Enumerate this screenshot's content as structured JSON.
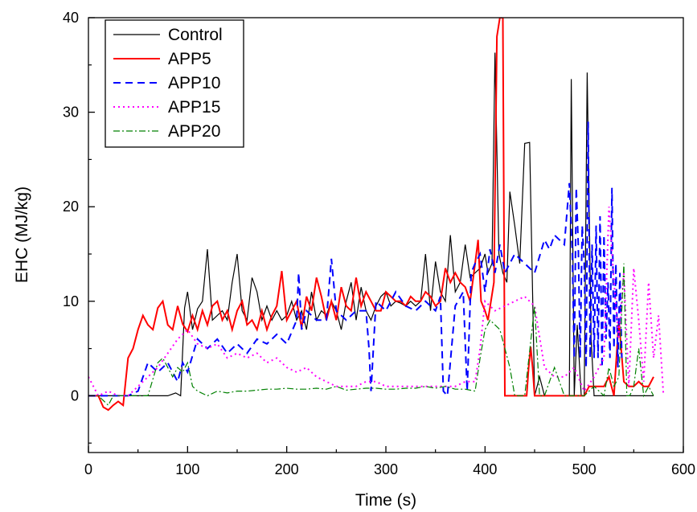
{
  "chart_data": {
    "type": "line",
    "xlabel": "Time (s)",
    "ylabel": "EHC (MJ/kg)",
    "xlim": [
      0,
      600
    ],
    "ylim": [
      -6,
      40
    ],
    "xticks": [
      0,
      100,
      200,
      300,
      400,
      500,
      600
    ],
    "yticks": [
      0,
      10,
      20,
      30,
      40
    ],
    "xtick_labels": [
      "0",
      "100",
      "200",
      "300",
      "400",
      "500",
      "600"
    ],
    "ytick_labels": [
      "0",
      "10",
      "20",
      "30",
      "40"
    ],
    "grid": false,
    "legend_position": "top-left",
    "series": [
      {
        "name": "Control",
        "color": "#000000",
        "dash": "solid",
        "width": 1.2,
        "x": [
          0,
          10,
          20,
          30,
          40,
          50,
          60,
          70,
          80,
          88,
          93,
          97,
          100,
          105,
          110,
          115,
          120,
          125,
          130,
          135,
          140,
          145,
          150,
          155,
          160,
          165,
          170,
          175,
          180,
          185,
          190,
          195,
          200,
          205,
          210,
          215,
          220,
          225,
          230,
          235,
          240,
          245,
          250,
          255,
          260,
          265,
          270,
          275,
          280,
          285,
          290,
          295,
          300,
          305,
          310,
          315,
          320,
          325,
          330,
          335,
          340,
          345,
          350,
          355,
          360,
          365,
          370,
          375,
          380,
          385,
          390,
          395,
          400,
          403,
          407,
          410,
          414,
          418,
          422,
          425,
          430,
          435,
          440,
          445,
          450,
          455,
          460,
          465,
          470,
          475,
          480,
          485,
          487,
          490,
          493,
          497,
          500,
          503,
          507,
          510,
          514,
          518,
          522,
          526,
          530,
          535,
          540,
          545,
          550,
          560,
          570
        ],
        "y": [
          0,
          0,
          0,
          0,
          0,
          0,
          0,
          0,
          0,
          0.3,
          0,
          9.3,
          11,
          7,
          9.2,
          10,
          15.5,
          8,
          8.5,
          9,
          8,
          12,
          15,
          9,
          8,
          12.5,
          11,
          8,
          9.5,
          8,
          9,
          8,
          8.5,
          10,
          8,
          9,
          7,
          11,
          8,
          9,
          8.5,
          10,
          9,
          7,
          10,
          12,
          8,
          11.5,
          9,
          8,
          9.5,
          10.5,
          11,
          9.5,
          10,
          9.8,
          9.5,
          10,
          9.5,
          10,
          15,
          9,
          14.2,
          11,
          10,
          17,
          11,
          12,
          16,
          12.5,
          13,
          13.5,
          15,
          13,
          14,
          36.3,
          15,
          13,
          12,
          21.6,
          18,
          14,
          26.7,
          26.8,
          0,
          2,
          0,
          0,
          0,
          0,
          0,
          0,
          33.5,
          0,
          7.5,
          0,
          0,
          34.2,
          6,
          0,
          0,
          0,
          0,
          0,
          0,
          0,
          0,
          0,
          0,
          0,
          0
        ]
      },
      {
        "name": "APP5",
        "color": "#ff0000",
        "dash": "solid",
        "width": 2,
        "x": [
          0,
          10,
          15,
          20,
          25,
          30,
          35,
          40,
          45,
          50,
          55,
          60,
          65,
          70,
          75,
          80,
          85,
          90,
          95,
          100,
          105,
          110,
          115,
          120,
          125,
          130,
          135,
          140,
          145,
          150,
          155,
          160,
          165,
          170,
          175,
          180,
          185,
          190,
          195,
          200,
          205,
          210,
          215,
          220,
          225,
          230,
          235,
          240,
          245,
          250,
          255,
          260,
          265,
          270,
          275,
          280,
          285,
          290,
          295,
          300,
          305,
          310,
          315,
          320,
          325,
          330,
          335,
          340,
          345,
          350,
          355,
          360,
          365,
          370,
          375,
          380,
          385,
          390,
          393,
          396,
          400,
          403,
          406,
          409,
          412,
          415,
          418,
          420,
          425,
          430,
          440,
          442,
          444,
          446,
          448,
          450,
          455,
          460,
          470,
          480,
          490,
          500,
          505,
          510,
          515,
          520,
          525,
          530,
          535,
          540,
          545,
          550,
          555,
          560,
          565,
          570
        ],
        "y": [
          0,
          0,
          -1.2,
          -1.5,
          -1,
          -0.6,
          -1,
          4,
          5,
          7,
          8.5,
          7.5,
          7,
          9.3,
          10,
          7.5,
          7,
          9.5,
          7.6,
          6.8,
          8.5,
          7,
          9,
          7.5,
          9.5,
          10,
          8,
          9,
          7,
          9,
          10,
          7.5,
          8,
          7,
          9,
          7,
          8.5,
          9.5,
          13.2,
          8,
          9,
          10,
          7.2,
          10.5,
          9,
          12.5,
          10.5,
          8,
          10,
          8,
          11.5,
          9.5,
          9,
          12.5,
          9.5,
          11,
          10,
          9,
          9,
          11,
          10.5,
          10,
          10,
          9.5,
          10.5,
          10,
          10,
          11,
          10.5,
          9.5,
          10,
          13.5,
          12,
          13,
          12,
          11.5,
          10,
          14,
          16.5,
          10,
          9,
          8,
          10,
          12,
          38,
          40,
          40,
          0,
          0,
          0,
          0,
          0,
          3,
          5.2,
          3,
          0,
          0,
          0,
          0,
          0,
          0,
          0,
          1,
          1,
          1,
          1,
          2,
          0,
          8,
          1.5,
          1,
          1,
          1.5,
          1,
          1,
          2
        ]
      },
      {
        "name": "APP10",
        "color": "#0000ff",
        "dash": "dashed",
        "width": 2,
        "x": [
          0,
          20,
          40,
          50,
          60,
          70,
          80,
          90,
          95,
          100,
          110,
          120,
          130,
          140,
          150,
          160,
          170,
          180,
          190,
          200,
          210,
          212,
          215,
          220,
          230,
          240,
          245,
          250,
          260,
          270,
          280,
          283,
          285,
          290,
          300,
          310,
          320,
          330,
          340,
          350,
          355,
          358,
          362,
          370,
          378,
          382,
          386,
          390,
          395,
          400,
          405,
          410,
          415,
          420,
          430,
          440,
          450,
          460,
          465,
          470,
          480,
          485,
          488,
          490,
          492,
          494,
          496,
          498,
          500,
          502,
          504,
          506,
          508,
          510,
          512,
          514,
          516,
          518,
          520,
          522,
          524,
          526,
          528,
          530,
          532,
          534,
          536,
          538
        ],
        "y": [
          0,
          0,
          0,
          0.5,
          3.5,
          2.5,
          3.5,
          1.5,
          3.5,
          2.5,
          6,
          5,
          6,
          4.5,
          5.5,
          4.5,
          6,
          5.5,
          6.5,
          5.5,
          8,
          13,
          7,
          9,
          8,
          8,
          14.5,
          9,
          8,
          9,
          9,
          5,
          0.5,
          10,
          9,
          11,
          9.5,
          9,
          10,
          9,
          10.5,
          0.5,
          0,
          9.5,
          11,
          0.5,
          13,
          14,
          15,
          11,
          15.5,
          13,
          16,
          13,
          15,
          14,
          13,
          16.5,
          15.5,
          17,
          16,
          22.5,
          15,
          4,
          22,
          16,
          4,
          18,
          14,
          3,
          29,
          4,
          16,
          4,
          18,
          4,
          19,
          3,
          17,
          6,
          12,
          4,
          22,
          5,
          14,
          3,
          13,
          4
        ]
      },
      {
        "name": "APP15",
        "color": "#ff00ff",
        "dash": "dotted",
        "width": 2,
        "x": [
          0,
          10,
          20,
          30,
          40,
          50,
          60,
          70,
          80,
          90,
          100,
          110,
          120,
          130,
          140,
          150,
          160,
          170,
          180,
          190,
          200,
          210,
          220,
          230,
          240,
          250,
          260,
          270,
          280,
          290,
          300,
          310,
          320,
          330,
          340,
          350,
          360,
          370,
          380,
          390,
          395,
          400,
          410,
          420,
          430,
          440,
          445,
          450,
          460,
          470,
          480,
          490,
          500,
          510,
          520,
          525,
          530,
          535,
          540,
          545,
          550,
          555,
          560,
          565,
          570,
          575,
          580
        ],
        "y": [
          2,
          0,
          0.5,
          0,
          0,
          1,
          2,
          3,
          4.5,
          6,
          7,
          5.5,
          5,
          5.5,
          4,
          4.5,
          4,
          4.5,
          3.5,
          4,
          3,
          2.5,
          3,
          2,
          1.5,
          1,
          1,
          1,
          1.5,
          1.5,
          1,
          1,
          1,
          1,
          1,
          1,
          1,
          1,
          1.5,
          1.5,
          5,
          10,
          9,
          9.5,
          10,
          10.5,
          10,
          9.5,
          3,
          2,
          2,
          3,
          0.5,
          2,
          4,
          20,
          12,
          6,
          13,
          1,
          13.5,
          8,
          1.5,
          12,
          4,
          8.5,
          0
        ]
      },
      {
        "name": "APP20",
        "color": "#008000",
        "dash": "dashdot",
        "width": 1.2,
        "x": [
          0,
          10,
          20,
          25,
          30,
          40,
          50,
          60,
          70,
          75,
          80,
          85,
          90,
          95,
          100,
          105,
          110,
          120,
          130,
          140,
          150,
          160,
          170,
          180,
          190,
          200,
          210,
          220,
          230,
          240,
          250,
          260,
          270,
          280,
          290,
          300,
          310,
          320,
          330,
          340,
          350,
          360,
          370,
          380,
          390,
          395,
          400,
          405,
          410,
          415,
          420,
          425,
          430,
          440,
          450,
          455,
          460,
          470,
          480,
          490,
          500,
          510,
          520,
          525,
          530,
          535,
          540,
          543,
          546,
          550,
          555,
          560,
          565,
          570
        ],
        "y": [
          0,
          0,
          -1,
          0,
          0,
          0,
          0,
          0,
          3.5,
          4,
          3,
          2,
          3,
          2.5,
          3.5,
          1,
          0.5,
          0,
          0.5,
          0.3,
          0.5,
          0.5,
          0.6,
          0.7,
          0.7,
          0.8,
          0.7,
          0.7,
          0.8,
          0.7,
          1,
          0.6,
          0.7,
          0.8,
          0.8,
          0.7,
          0.7,
          0.8,
          0.8,
          1,
          0.8,
          1,
          0.7,
          0.7,
          0.5,
          4,
          7,
          8,
          7.5,
          7,
          5,
          3,
          0,
          0,
          9.5,
          0,
          0,
          3,
          0,
          0,
          0,
          1,
          0,
          3,
          1,
          2,
          14,
          0,
          0,
          1,
          5,
          0,
          1,
          0
        ]
      }
    ]
  }
}
